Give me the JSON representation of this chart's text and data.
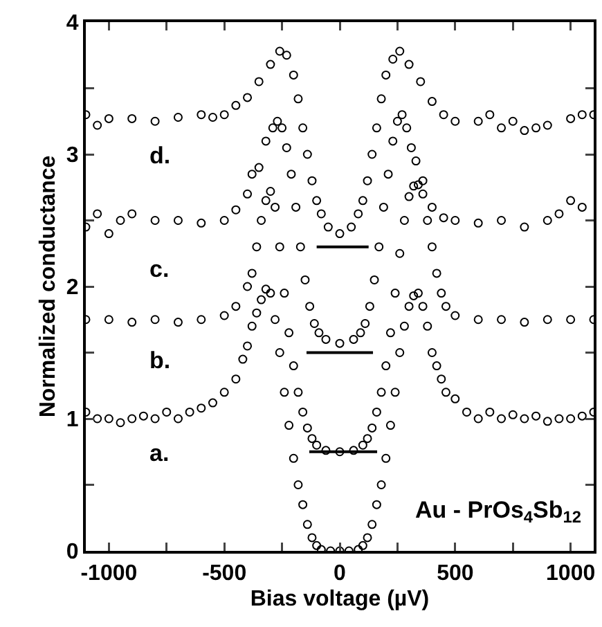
{
  "chart_data": {
    "type": "scatter",
    "xlabel": "Bias voltage (µV)",
    "ylabel": "Normalized conductance",
    "marker": "circle",
    "grid": false,
    "legend": false,
    "xlim": [
      -1100,
      1100
    ],
    "xticks": [
      -1000,
      {
        "value": -750,
        "label": null
      },
      -500,
      {
        "value": -250,
        "label": null
      },
      0,
      {
        "value": 250,
        "label": null
      },
      500,
      {
        "value": 750,
        "label": null
      },
      1000
    ],
    "ylim": [
      0,
      4
    ],
    "yticks": [
      0,
      {
        "value": 0.5,
        "label": null
      },
      1,
      {
        "value": 1.5,
        "label": null
      },
      2,
      {
        "value": 2.5,
        "label": null
      },
      3,
      {
        "value": 3.5,
        "label": null
      },
      4
    ],
    "series": [
      {
        "name": "a.",
        "color": "#000000",
        "x": [
          -1100,
          -1050,
          -1000,
          -950,
          -900,
          -850,
          -800,
          -750,
          -700,
          -650,
          -600,
          -550,
          -500,
          -450,
          -420,
          -400,
          -380,
          -360,
          -340,
          -320,
          -300,
          -280,
          -260,
          -240,
          -220,
          -200,
          -180,
          -160,
          -140,
          -120,
          -100,
          -80,
          -40,
          0,
          40,
          80,
          100,
          120,
          140,
          160,
          180,
          200,
          220,
          240,
          260,
          280,
          300,
          320,
          340,
          360,
          380,
          400,
          420,
          440,
          460,
          500,
          550,
          600,
          650,
          700,
          750,
          800,
          850,
          900,
          950,
          1000,
          1050,
          1100
        ],
        "values": [
          1.05,
          1.0,
          1.0,
          0.97,
          1.0,
          1.02,
          1.0,
          1.05,
          1.0,
          1.05,
          1.08,
          1.12,
          1.2,
          1.3,
          1.45,
          1.55,
          1.7,
          1.8,
          1.9,
          1.98,
          1.95,
          1.75,
          1.5,
          1.2,
          0.95,
          0.7,
          0.5,
          0.35,
          0.2,
          0.1,
          0.04,
          0.01,
          0,
          0,
          0,
          0.01,
          0.04,
          0.1,
          0.2,
          0.35,
          0.5,
          0.7,
          0.95,
          1.2,
          1.5,
          1.7,
          1.85,
          1.93,
          1.95,
          1.85,
          1.7,
          1.5,
          1.4,
          1.3,
          1.2,
          1.15,
          1.05,
          1.0,
          1.05,
          1.0,
          1.03,
          1.0,
          1.02,
          0.98,
          1.0,
          1.0,
          1.02,
          1.05
        ]
      },
      {
        "name": "b.",
        "color": "#000000",
        "x": [
          -1100,
          -1000,
          -900,
          -800,
          -700,
          -600,
          -500,
          -450,
          -400,
          -380,
          -360,
          -340,
          -320,
          -300,
          -280,
          -260,
          -240,
          -220,
          -200,
          -180,
          -160,
          -140,
          -120,
          -100,
          -60,
          0,
          60,
          100,
          120,
          140,
          160,
          180,
          200,
          220,
          240,
          260,
          280,
          300,
          320,
          340,
          360,
          380,
          400,
          420,
          440,
          460,
          500,
          600,
          700,
          800,
          900,
          1000,
          1100
        ],
        "values": [
          1.75,
          1.75,
          1.73,
          1.75,
          1.73,
          1.75,
          1.78,
          1.85,
          2.0,
          2.1,
          2.3,
          2.5,
          2.65,
          2.72,
          2.6,
          2.3,
          1.95,
          1.65,
          1.4,
          1.2,
          1.05,
          0.93,
          0.85,
          0.8,
          0.76,
          0.75,
          0.76,
          0.8,
          0.85,
          0.93,
          1.05,
          1.2,
          1.4,
          1.65,
          1.95,
          2.25,
          2.5,
          2.68,
          2.76,
          2.77,
          2.7,
          2.5,
          2.3,
          2.1,
          1.95,
          1.85,
          1.78,
          1.75,
          1.75,
          1.73,
          1.75,
          1.75,
          1.75
        ]
      },
      {
        "name": "c.",
        "color": "#000000",
        "x": [
          -1100,
          -1050,
          -1000,
          -950,
          -900,
          -800,
          -700,
          -600,
          -500,
          -450,
          -400,
          -380,
          -350,
          -320,
          -290,
          -270,
          -250,
          -230,
          -210,
          -190,
          -170,
          -150,
          -130,
          -110,
          -90,
          -60,
          0,
          60,
          90,
          110,
          130,
          150,
          170,
          190,
          210,
          230,
          250,
          270,
          290,
          310,
          330,
          360,
          400,
          450,
          500,
          600,
          700,
          800,
          900,
          950,
          1000,
          1050
        ],
        "values": [
          2.45,
          2.55,
          2.4,
          2.5,
          2.55,
          2.5,
          2.5,
          2.48,
          2.5,
          2.58,
          2.7,
          2.85,
          2.9,
          3.1,
          3.2,
          3.25,
          3.2,
          3.05,
          2.85,
          2.6,
          2.3,
          2.05,
          1.85,
          1.72,
          1.65,
          1.6,
          1.57,
          1.6,
          1.65,
          1.72,
          1.85,
          2.05,
          2.3,
          2.6,
          2.85,
          3.1,
          3.25,
          3.3,
          3.2,
          3.05,
          2.95,
          2.8,
          2.6,
          2.52,
          2.5,
          2.48,
          2.5,
          2.45,
          2.5,
          2.55,
          2.65,
          2.6
        ]
      },
      {
        "name": "d.",
        "color": "#000000",
        "x": [
          -1100,
          -1050,
          -1000,
          -900,
          -800,
          -700,
          -600,
          -550,
          -500,
          -450,
          -400,
          -350,
          -300,
          -260,
          -230,
          -200,
          -180,
          -160,
          -140,
          -120,
          -100,
          -80,
          -50,
          0,
          50,
          80,
          100,
          120,
          140,
          160,
          180,
          200,
          230,
          260,
          300,
          350,
          400,
          450,
          500,
          600,
          650,
          700,
          750,
          800,
          850,
          900,
          1000,
          1050,
          1100
        ],
        "values": [
          3.3,
          3.22,
          3.27,
          3.27,
          3.25,
          3.28,
          3.3,
          3.28,
          3.3,
          3.37,
          3.43,
          3.55,
          3.68,
          3.78,
          3.75,
          3.6,
          3.42,
          3.2,
          3.0,
          2.8,
          2.65,
          2.55,
          2.45,
          2.4,
          2.45,
          2.55,
          2.65,
          2.8,
          3.0,
          3.2,
          3.42,
          3.6,
          3.72,
          3.78,
          3.68,
          3.55,
          3.4,
          3.3,
          3.25,
          3.25,
          3.3,
          3.2,
          3.25,
          3.18,
          3.2,
          3.22,
          3.27,
          3.3,
          3.3
        ]
      },
      {
        "type": "line",
        "marker": "none",
        "color": "#000000",
        "x": [
          -132,
          162
        ],
        "values": [
          0.75,
          0.75
        ]
      },
      {
        "type": "line",
        "marker": "none",
        "color": "#000000",
        "x": [
          -144,
          144
        ],
        "values": [
          1.5,
          1.5
        ]
      },
      {
        "type": "line",
        "marker": "none",
        "color": "#000000",
        "x": [
          -100,
          125
        ],
        "values": [
          2.3,
          2.3
        ]
      }
    ],
    "annotations": [
      "Au - PrOs$_{4}$Sb$_{12}$"
    ]
  }
}
